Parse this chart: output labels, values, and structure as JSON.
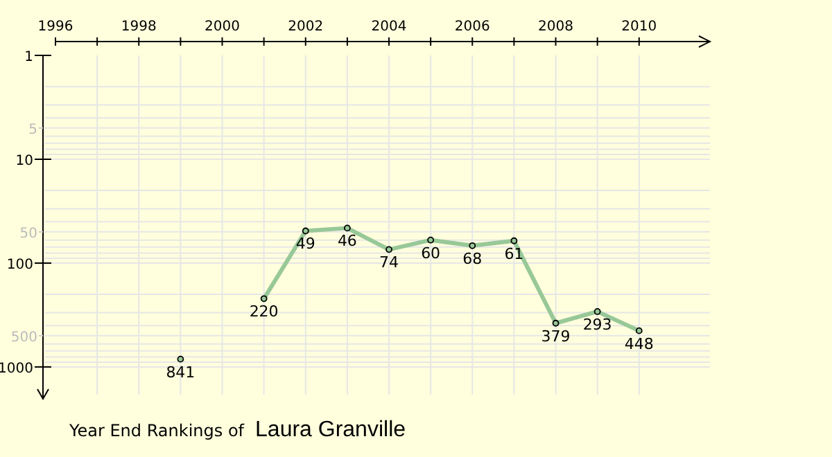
{
  "chart_data": {
    "type": "line",
    "title": "Year End Rankings of",
    "subtitle": "Laura Granville",
    "x": [
      1999,
      2000,
      2001,
      2002,
      2003,
      2004,
      2005,
      2006,
      2007,
      2008,
      2009,
      2010
    ],
    "series": [
      {
        "color": "#98c898",
        "values": [
          841,
          null,
          220,
          49,
          46,
          74,
          60,
          68,
          61,
          379,
          293,
          448
        ]
      }
    ],
    "xlim": [
      1996,
      2011.7
    ],
    "xticks": [
      1996,
      {
        "value": 1997,
        "label": null
      },
      1998,
      {
        "value": 1999,
        "label": null
      },
      2000,
      {
        "value": 2001,
        "label": null
      },
      2002,
      {
        "value": 2003,
        "label": null
      },
      2004,
      {
        "value": 2005,
        "label": null
      },
      2006,
      {
        "value": 2007,
        "label": null
      },
      2008,
      {
        "value": 2009,
        "label": null
      },
      2010
    ],
    "ylim": [
      1850,
      1
    ],
    "yticks": [
      1,
      5,
      10,
      50,
      100,
      500,
      1000
    ],
    "log": "y",
    "grid": true,
    "marker": "circle",
    "line_style": "solid",
    "data_labels": true
  }
}
